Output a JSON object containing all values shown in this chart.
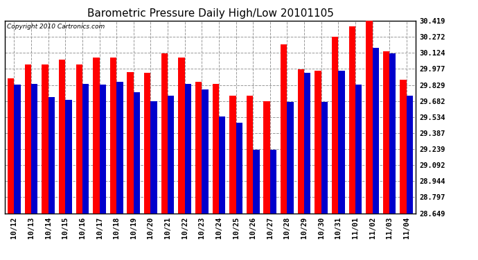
{
  "title": "Barometric Pressure Daily High/Low 20101105",
  "copyright": "Copyright 2010 Cartronics.com",
  "dates": [
    "10/12",
    "10/13",
    "10/14",
    "10/15",
    "10/16",
    "10/17",
    "10/18",
    "10/19",
    "10/20",
    "10/21",
    "10/22",
    "10/23",
    "10/24",
    "10/25",
    "10/26",
    "10/27",
    "10/28",
    "10/29",
    "10/30",
    "10/31",
    "11/01",
    "11/02",
    "11/03",
    "11/04"
  ],
  "highs": [
    29.89,
    30.02,
    30.02,
    30.06,
    30.02,
    30.08,
    30.08,
    29.95,
    29.94,
    30.12,
    30.08,
    29.86,
    29.84,
    29.73,
    29.73,
    29.68,
    30.2,
    29.97,
    29.96,
    30.27,
    30.37,
    30.42,
    30.14,
    29.88
  ],
  "lows": [
    29.83,
    29.84,
    29.72,
    29.69,
    29.84,
    29.83,
    29.86,
    29.76,
    29.68,
    29.73,
    29.84,
    29.79,
    29.54,
    29.48,
    29.23,
    29.23,
    29.67,
    29.94,
    29.67,
    29.96,
    29.83,
    30.17,
    30.12,
    29.73
  ],
  "yticks": [
    28.649,
    28.797,
    28.944,
    29.092,
    29.239,
    29.387,
    29.534,
    29.682,
    29.829,
    29.977,
    30.124,
    30.272,
    30.419
  ],
  "ymin": 28.649,
  "ymax": 30.419,
  "high_color": "#ff0000",
  "low_color": "#0000cc",
  "bg_color": "#ffffff",
  "plot_bg_color": "#ffffff",
  "grid_color": "#999999",
  "bar_width": 0.38,
  "title_fontsize": 11,
  "tick_fontsize": 7.5,
  "copyright_fontsize": 6.5
}
